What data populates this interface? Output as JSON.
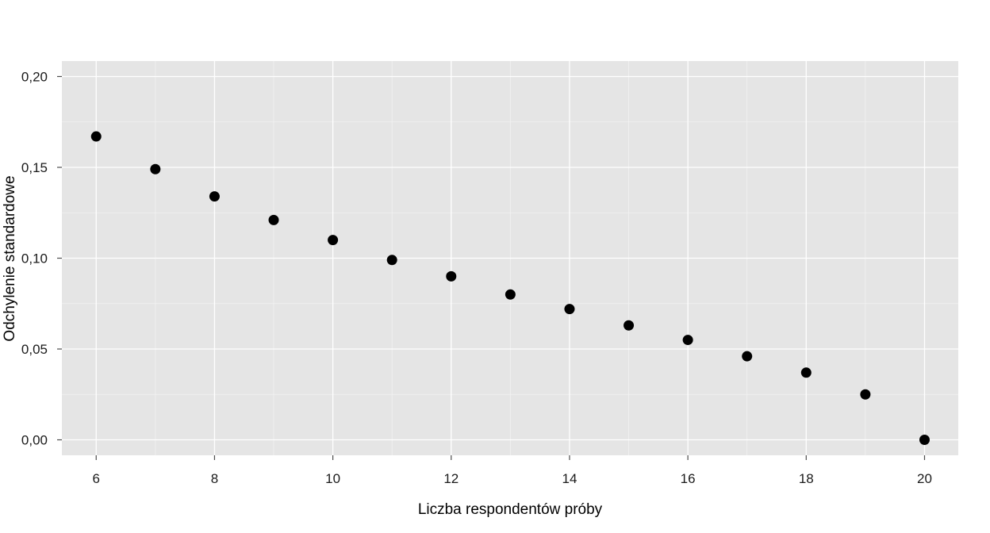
{
  "chart_data": {
    "type": "scatter",
    "title": "",
    "xlabel": "Liczba respondentów próby",
    "ylabel": "Odchylenie standardowe",
    "xlim": [
      5.42,
      20.57
    ],
    "ylim": [
      -0.0085,
      0.2085
    ],
    "x_ticks": [
      6,
      8,
      10,
      12,
      14,
      16,
      18,
      20
    ],
    "x_tick_labels": [
      "6",
      "8",
      "10",
      "12",
      "14",
      "16",
      "18",
      "20"
    ],
    "y_ticks": [
      0,
      0.05,
      0.1,
      0.15,
      0.2
    ],
    "y_tick_labels": [
      "0,00",
      "0,05",
      "0,10",
      "0,15",
      "0,20"
    ],
    "x_minor_grid": [
      7,
      9,
      11,
      13,
      15,
      17,
      19
    ],
    "y_minor_grid": [
      0.025,
      0.075,
      0.125,
      0.175
    ],
    "grid": true,
    "legend": "none",
    "colors": {
      "panel": "#e5e5e5",
      "grid_major": "#ffffff",
      "grid_minor": "#f2f2f2",
      "point": "#000000",
      "tick": "#4d4d4d"
    },
    "points": [
      {
        "x": 6,
        "y": 0.167
      },
      {
        "x": 7,
        "y": 0.149
      },
      {
        "x": 8,
        "y": 0.134
      },
      {
        "x": 9,
        "y": 0.121
      },
      {
        "x": 10,
        "y": 0.11
      },
      {
        "x": 11,
        "y": 0.099
      },
      {
        "x": 12,
        "y": 0.09
      },
      {
        "x": 13,
        "y": 0.08
      },
      {
        "x": 14,
        "y": 0.072
      },
      {
        "x": 15,
        "y": 0.063
      },
      {
        "x": 16,
        "y": 0.055
      },
      {
        "x": 17,
        "y": 0.046
      },
      {
        "x": 18,
        "y": 0.037
      },
      {
        "x": 19,
        "y": 0.025
      },
      {
        "x": 20,
        "y": 0.0
      }
    ]
  }
}
